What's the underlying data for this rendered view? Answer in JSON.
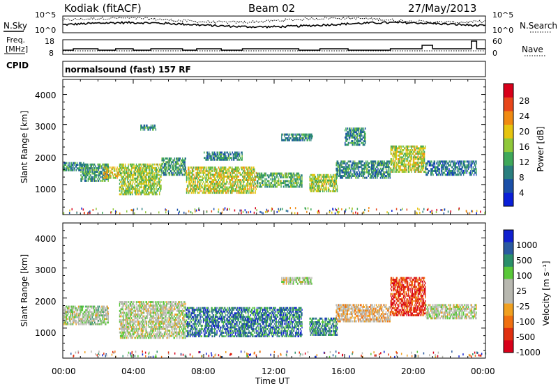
{
  "header": {
    "radar": "Kodiak (fitACF)",
    "beam": "Beam 02",
    "date": "27/May/2013"
  },
  "noise_panel": {
    "left_label": "N.Sky",
    "right_label": "N.Search",
    "left_ticks": [
      "10^5",
      "10^0"
    ],
    "right_ticks": [
      "10^5",
      "10^0"
    ]
  },
  "freq_panel": {
    "left_label_line1": "Freq.",
    "left_label_line2": "[MHz]",
    "right_label": "Nave",
    "left_ticks": [
      "18",
      "8"
    ],
    "right_ticks": [
      "60",
      "0"
    ]
  },
  "cpid": {
    "label": "CPID",
    "value": "normalsound (fast) 157 RF"
  },
  "chart_data": [
    {
      "type": "heatmap",
      "name": "power",
      "ylabel": "Slant Range [km]",
      "xlabel": "",
      "xlim": [
        0,
        24
      ],
      "ylim": [
        0,
        4500
      ],
      "yticks": [
        "1000",
        "2000",
        "3000",
        "4000"
      ],
      "colorbar_label": "Power [dB]",
      "colorbar_ticks": [
        "4",
        "8",
        "12",
        "16",
        "20",
        "24",
        "28"
      ],
      "colorbar_colors": [
        "#0a1fd8",
        "#1a4fa8",
        "#2a7f7f",
        "#3fa85a",
        "#8fc83a",
        "#e6c40f",
        "#f08a12",
        "#e8461a",
        "#d8001a"
      ],
      "echo_regions": [
        {
          "t_start": 0.0,
          "t_end": 1.2,
          "r_min": 1450,
          "r_max": 1750,
          "level": 0.3
        },
        {
          "t_start": 1.0,
          "t_end": 2.6,
          "r_min": 1100,
          "r_max": 1700,
          "level": 0.35
        },
        {
          "t_start": 2.3,
          "t_end": 3.2,
          "r_min": 1200,
          "r_max": 1600,
          "level": 0.6
        },
        {
          "t_start": 3.2,
          "t_end": 5.6,
          "r_min": 650,
          "r_max": 1700,
          "level": 0.5
        },
        {
          "t_start": 4.4,
          "t_end": 5.3,
          "r_min": 2800,
          "r_max": 3000,
          "level": 0.3
        },
        {
          "t_start": 5.6,
          "t_end": 7.0,
          "r_min": 1300,
          "r_max": 1900,
          "level": 0.35
        },
        {
          "t_start": 7.0,
          "t_end": 11.0,
          "r_min": 700,
          "r_max": 1600,
          "level": 0.55
        },
        {
          "t_start": 8.0,
          "t_end": 10.2,
          "r_min": 1800,
          "r_max": 2100,
          "level": 0.3
        },
        {
          "t_start": 11.0,
          "t_end": 13.6,
          "r_min": 900,
          "r_max": 1400,
          "level": 0.4
        },
        {
          "t_start": 12.4,
          "t_end": 14.2,
          "r_min": 2450,
          "r_max": 2700,
          "level": 0.3
        },
        {
          "t_start": 14.0,
          "t_end": 15.6,
          "r_min": 750,
          "r_max": 1350,
          "level": 0.5
        },
        {
          "t_start": 15.5,
          "t_end": 18.6,
          "r_min": 1200,
          "r_max": 1800,
          "level": 0.3
        },
        {
          "t_start": 16.0,
          "t_end": 17.2,
          "r_min": 2300,
          "r_max": 2900,
          "level": 0.3
        },
        {
          "t_start": 18.6,
          "t_end": 20.6,
          "r_min": 1400,
          "r_max": 2300,
          "level": 0.55
        },
        {
          "t_start": 20.6,
          "t_end": 23.5,
          "r_min": 1300,
          "r_max": 1800,
          "level": 0.25
        }
      ]
    },
    {
      "type": "heatmap",
      "name": "velocity",
      "ylabel": "Slant Range [km]",
      "xlabel": "Time UT",
      "xlim": [
        0,
        24
      ],
      "ylim": [
        0,
        4500
      ],
      "yticks": [
        "1000",
        "2000",
        "3000",
        "4000"
      ],
      "xticks": [
        "00:00",
        "04:00",
        "08:00",
        "12:00",
        "16:00",
        "20:00",
        "00:00"
      ],
      "colorbar_label": "Velocity [m s⁻¹]",
      "colorbar_ticks": [
        "1000",
        "500",
        "100",
        "25",
        "-25",
        "-100",
        "-500",
        "-1000"
      ],
      "colorbar_colors": [
        "#1020d0",
        "#2a5aa0",
        "#2a8f6a",
        "#5ac83a",
        "#b8b8b0",
        "#b8b8b0",
        "#f0a020",
        "#f07010",
        "#e03010",
        "#d8001a"
      ],
      "echo_regions": [
        {
          "t_start": 0.0,
          "t_end": 2.6,
          "r_min": 1100,
          "r_max": 1750,
          "level": 0.45
        },
        {
          "t_start": 3.2,
          "t_end": 7.0,
          "r_min": 650,
          "r_max": 1900,
          "level": 0.48
        },
        {
          "t_start": 7.0,
          "t_end": 13.6,
          "r_min": 700,
          "r_max": 1700,
          "level": 0.2
        },
        {
          "t_start": 12.4,
          "t_end": 14.2,
          "r_min": 2450,
          "r_max": 2700,
          "level": 0.48
        },
        {
          "t_start": 14.0,
          "t_end": 15.6,
          "r_min": 750,
          "r_max": 1350,
          "level": 0.25
        },
        {
          "t_start": 15.5,
          "t_end": 18.6,
          "r_min": 1200,
          "r_max": 1800,
          "level": 0.6
        },
        {
          "t_start": 18.6,
          "t_end": 20.6,
          "r_min": 1400,
          "r_max": 2700,
          "level": 0.85
        },
        {
          "t_start": 20.6,
          "t_end": 23.5,
          "r_min": 1300,
          "r_max": 1800,
          "level": 0.48
        }
      ]
    }
  ]
}
